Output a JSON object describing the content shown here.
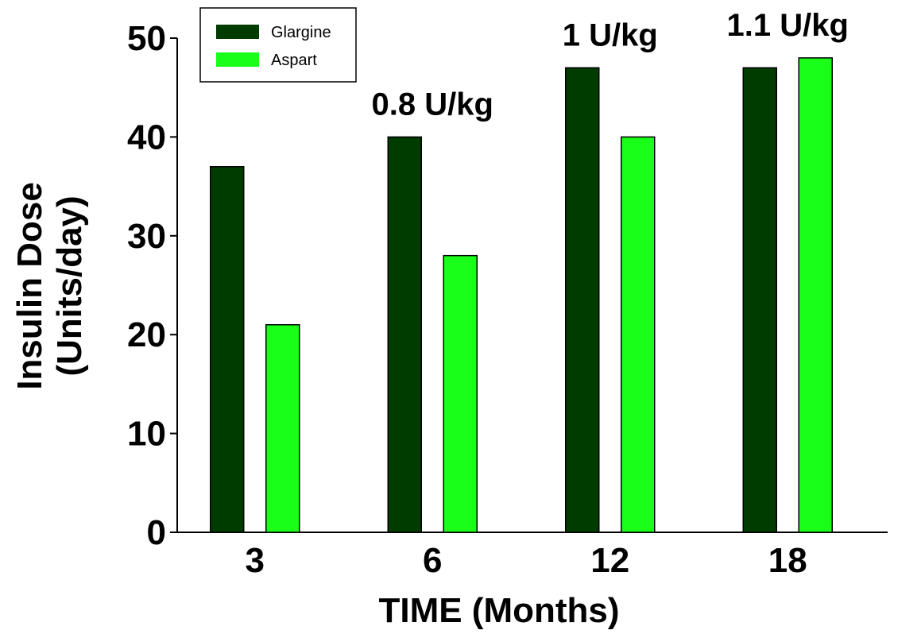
{
  "chart_data": {
    "type": "bar",
    "title": "",
    "xlabel": "TIME (Months)",
    "ylabel_line1": "Insulin Dose",
    "ylabel_line2": "(Units/day)",
    "ylim": [
      0,
      50
    ],
    "yticks": [
      0,
      10,
      20,
      30,
      40,
      50
    ],
    "categories": [
      "3",
      "6",
      "12",
      "18"
    ],
    "series": [
      {
        "name": "Glargine",
        "color": "#003b00",
        "values": [
          37,
          40,
          47,
          47
        ]
      },
      {
        "name": "Aspart",
        "color": "#19ff19",
        "values": [
          21,
          28,
          40,
          48
        ]
      }
    ],
    "annotations": [
      {
        "text": "0.8 U/kg",
        "category": "6"
      },
      {
        "text": "1 U/kg",
        "category": "12"
      },
      {
        "text": "1.1 U/kg",
        "category": "18"
      }
    ],
    "legend_position": "top-left",
    "grid": false
  }
}
